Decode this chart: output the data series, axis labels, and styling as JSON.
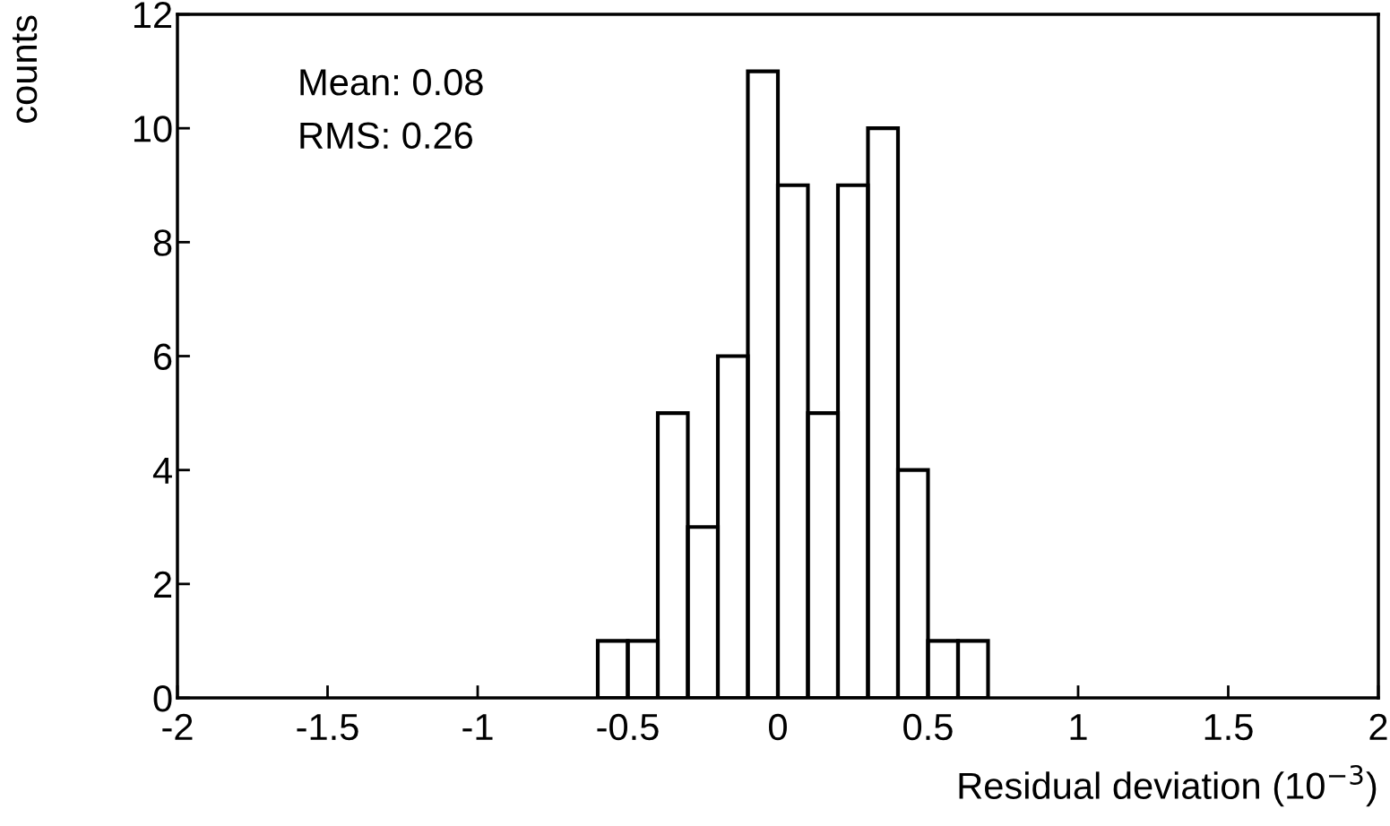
{
  "chart_data": {
    "type": "histogram",
    "xlabel": "Residual deviation (10$^{−3}$)",
    "ylabel": "counts",
    "bins": [
      -0.6,
      -0.5,
      -0.4,
      -0.3,
      -0.2,
      -0.1,
      0,
      0.1,
      0.2,
      0.3,
      0.4,
      0.5,
      0.6,
      0.7
    ],
    "values": [
      1,
      1,
      5,
      3,
      6,
      11,
      9,
      5,
      9,
      10,
      4,
      1,
      1
    ],
    "color": "#000000",
    "xlim": [
      -2,
      2
    ],
    "xticks": [
      -2,
      -1.5,
      -1,
      -0.5,
      0,
      0.5,
      1,
      1.5,
      2
    ],
    "ylim": [
      0,
      12
    ],
    "yticks": [
      0,
      2,
      4,
      6,
      8,
      10,
      12
    ],
    "grid": false,
    "legend": false,
    "annotations": [
      "Mean: 0.08",
      "RMS: 0.26"
    ]
  }
}
